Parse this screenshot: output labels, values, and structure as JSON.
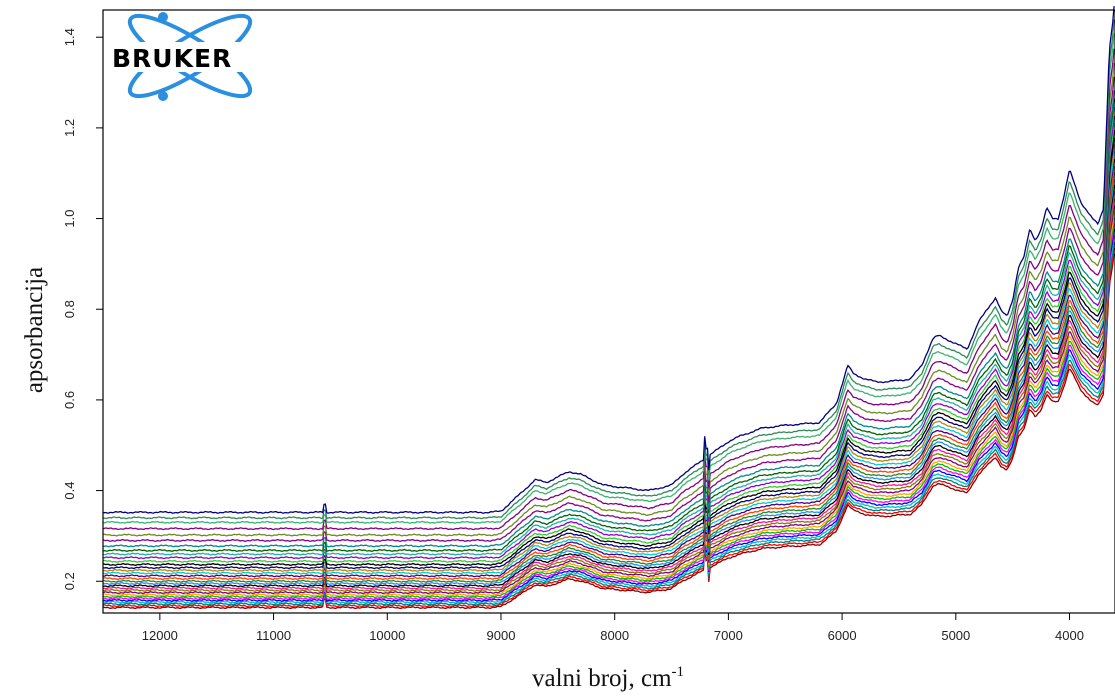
{
  "chart_data": {
    "type": "line",
    "logo_text": "BRUKER",
    "xlabel": "valni broj, cm",
    "xlabel_sup": "-1",
    "ylabel": "apsorbancija",
    "xlim": [
      12500,
      3600
    ],
    "ylim": [
      0.13,
      1.46
    ],
    "x_ticks": [
      12000,
      11000,
      10000,
      9000,
      8000,
      7000,
      6000,
      5000,
      4000
    ],
    "y_ticks": [
      0.2,
      0.4,
      0.6,
      0.8,
      1.0,
      1.2,
      1.4
    ],
    "y_tick_labels": [
      "0.2",
      "0.4",
      "0.6",
      "0.8",
      "1.0",
      "1.2",
      "1.4"
    ],
    "grid": false,
    "legend": "none",
    "profile": {
      "x": [
        12500,
        11000,
        10000,
        9100,
        9000,
        8800,
        8700,
        8600,
        8400,
        8300,
        8100,
        7900,
        7700,
        7500,
        7400,
        7200,
        7100,
        7000,
        6900,
        6700,
        6500,
        6200,
        6050,
        5950,
        5900,
        5800,
        5700,
        5600,
        5400,
        5300,
        5200,
        5150,
        5000,
        4900,
        4800,
        4700,
        4650,
        4600,
        4550,
        4500,
        4450,
        4400,
        4350,
        4300,
        4250,
        4200,
        4150,
        4100,
        4050,
        4000,
        3950,
        3900,
        3800,
        3750,
        3700,
        3680,
        3650,
        3620,
        3600
      ],
      "shape": [
        0,
        0,
        0,
        0,
        0.002,
        0.04,
        0.06,
        0.055,
        0.075,
        0.07,
        0.05,
        0.045,
        0.04,
        0.05,
        0.07,
        0.1,
        0.115,
        0.13,
        0.14,
        0.155,
        0.16,
        0.165,
        0.2,
        0.27,
        0.255,
        0.245,
        0.24,
        0.24,
        0.245,
        0.27,
        0.32,
        0.325,
        0.31,
        0.3,
        0.35,
        0.38,
        0.395,
        0.37,
        0.36,
        0.39,
        0.45,
        0.47,
        0.52,
        0.5,
        0.52,
        0.56,
        0.54,
        0.54,
        0.58,
        0.63,
        0.6,
        0.57,
        0.54,
        0.53,
        0.56,
        0.68,
        0.85,
        0.9,
        0.95
      ]
    },
    "series": [
      {
        "base": 0.142,
        "scale": 0.84,
        "color": "#8b0000"
      },
      {
        "base": 0.146,
        "scale": 0.85,
        "color": "#ff0000"
      },
      {
        "base": 0.15,
        "scale": 0.86,
        "color": "#008080"
      },
      {
        "base": 0.154,
        "scale": 0.87,
        "color": "#00bfbf"
      },
      {
        "base": 0.158,
        "scale": 0.88,
        "color": "#0000ff"
      },
      {
        "base": 0.162,
        "scale": 0.89,
        "color": "#ff00ff"
      },
      {
        "base": 0.166,
        "scale": 0.9,
        "color": "#00c000"
      },
      {
        "base": 0.17,
        "scale": 0.91,
        "color": "#ffa500"
      },
      {
        "base": 0.175,
        "scale": 0.92,
        "color": "#800080"
      },
      {
        "base": 0.18,
        "scale": 0.93,
        "color": "#808000"
      },
      {
        "base": 0.185,
        "scale": 0.94,
        "color": "#ff1493"
      },
      {
        "base": 0.19,
        "scale": 0.95,
        "color": "#000000"
      },
      {
        "base": 0.195,
        "scale": 0.96,
        "color": "#1e90ff"
      },
      {
        "base": 0.2,
        "scale": 0.97,
        "color": "#228b22"
      },
      {
        "base": 0.206,
        "scale": 0.98,
        "color": "#ff4500"
      },
      {
        "base": 0.212,
        "scale": 0.99,
        "color": "#4b0082"
      },
      {
        "base": 0.218,
        "scale": 1.0,
        "color": "#00ced1"
      },
      {
        "base": 0.224,
        "scale": 1.01,
        "color": "#b8860b"
      },
      {
        "base": 0.23,
        "scale": 1.02,
        "color": "#000080"
      },
      {
        "base": 0.237,
        "scale": 1.03,
        "color": "#000000"
      },
      {
        "base": 0.244,
        "scale": 1.04,
        "color": "#32cd32"
      },
      {
        "base": 0.252,
        "scale": 1.05,
        "color": "#9400d3"
      },
      {
        "base": 0.26,
        "scale": 1.06,
        "color": "#20b2aa"
      },
      {
        "base": 0.268,
        "scale": 1.07,
        "color": "#006400"
      },
      {
        "base": 0.278,
        "scale": 1.08,
        "color": "#008b8b"
      },
      {
        "base": 0.29,
        "scale": 1.1,
        "color": "#8b008b"
      },
      {
        "base": 0.302,
        "scale": 1.12,
        "color": "#6b8e23"
      },
      {
        "base": 0.316,
        "scale": 1.14,
        "color": "#800080"
      },
      {
        "base": 0.33,
        "scale": 1.16,
        "color": "#3cb371"
      },
      {
        "base": 0.34,
        "scale": 1.18,
        "color": "#2e8b57"
      },
      {
        "base": 0.352,
        "scale": 1.2,
        "color": "#000080"
      }
    ]
  }
}
